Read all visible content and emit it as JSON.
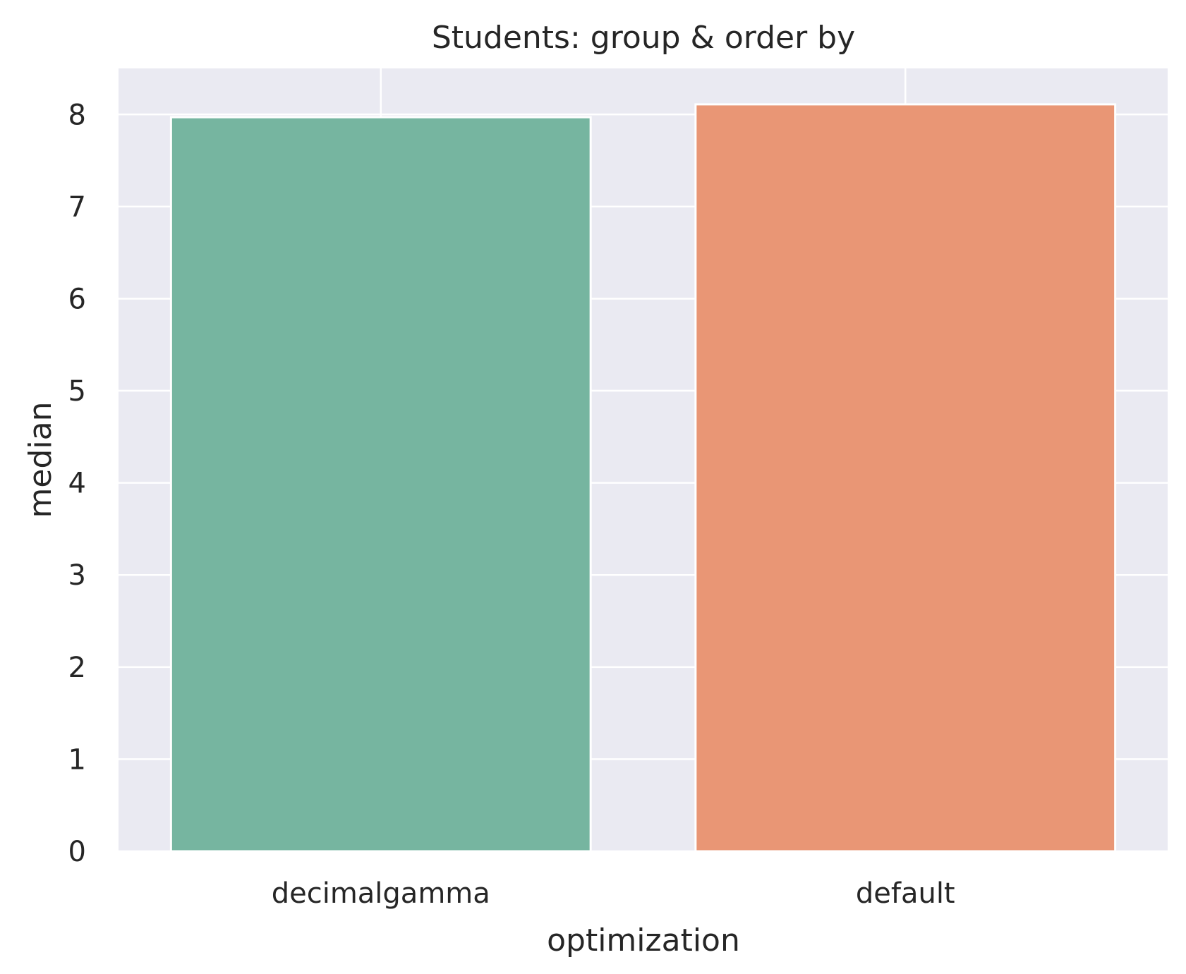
{
  "chart_data": {
    "type": "bar",
    "title": "Students: group & order by",
    "xlabel": "optimization",
    "ylabel": "median",
    "categories": [
      "decimalgamma",
      "default"
    ],
    "values": [
      7.97,
      8.11
    ],
    "colors": [
      "#76b5a0",
      "#e99675"
    ],
    "ylim": [
      0,
      8.5
    ],
    "yticks": [
      "0",
      "1",
      "2",
      "3",
      "4",
      "5",
      "6",
      "7",
      "8"
    ],
    "grid": true,
    "plot_background": "#eaeaf2",
    "grid_color": "#ffffff"
  }
}
